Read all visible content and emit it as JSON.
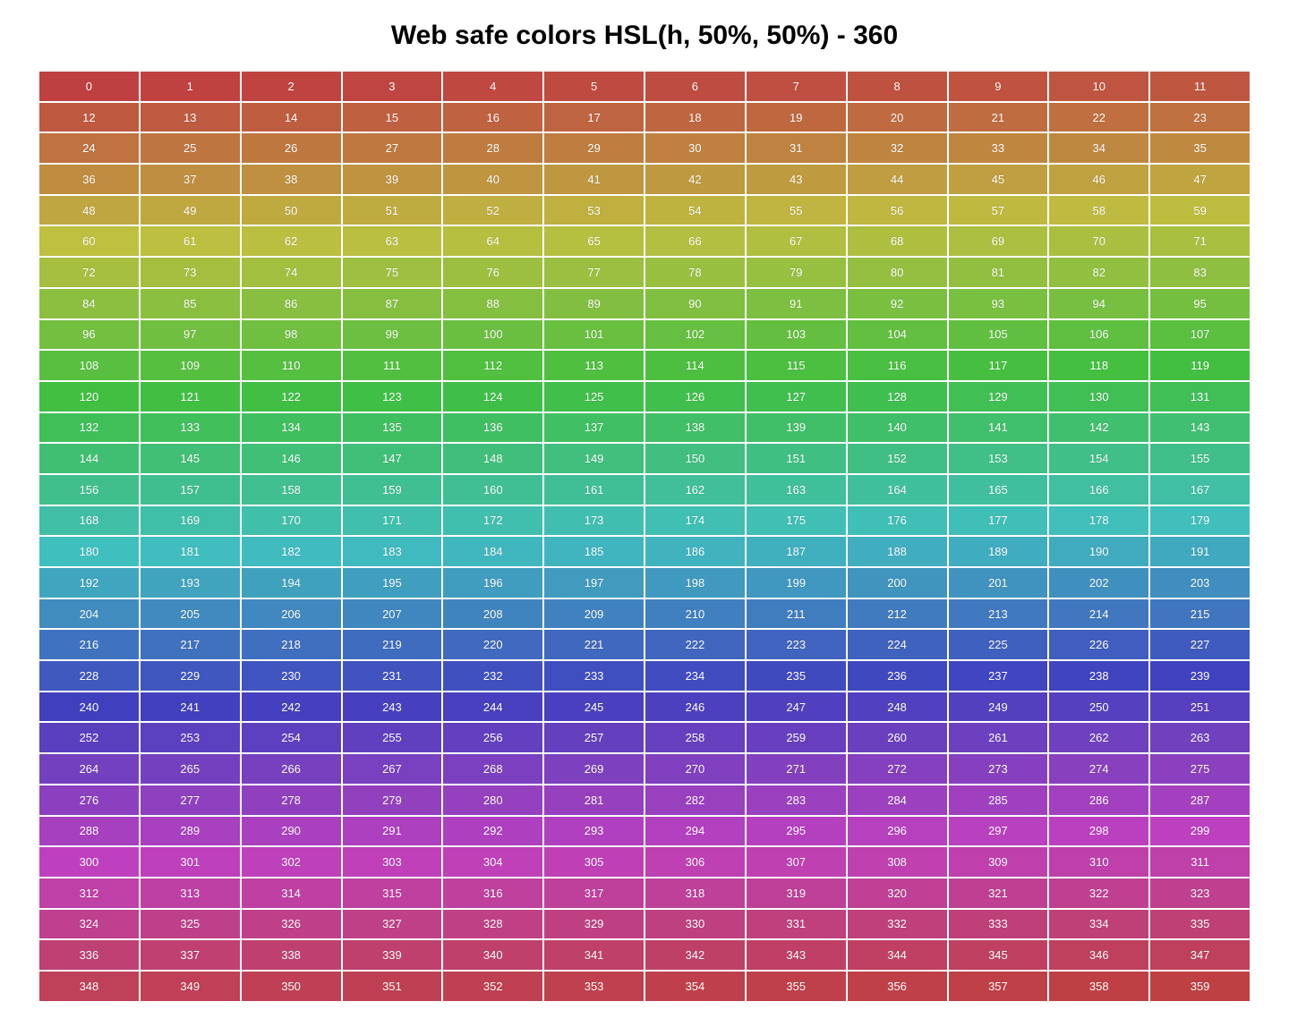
{
  "title": "Web safe colors HSL(h, 50%, 50%) - 360",
  "palette": {
    "saturation_percent": 50,
    "lightness_percent": 50,
    "text_color": "#ffffff",
    "hues": [
      0,
      1,
      2,
      3,
      4,
      5,
      6,
      7,
      8,
      9,
      10,
      11,
      12,
      13,
      14,
      15,
      16,
      17,
      18,
      19,
      20,
      21,
      22,
      23,
      24,
      25,
      26,
      27,
      28,
      29,
      30,
      31,
      32,
      33,
      34,
      35,
      36,
      37,
      38,
      39,
      40,
      41,
      42,
      43,
      44,
      45,
      46,
      47,
      48,
      49,
      50,
      51,
      52,
      53,
      54,
      55,
      56,
      57,
      58,
      59,
      60,
      61,
      62,
      63,
      64,
      65,
      66,
      67,
      68,
      69,
      70,
      71,
      72,
      73,
      74,
      75,
      76,
      77,
      78,
      79,
      80,
      81,
      82,
      83,
      84,
      85,
      86,
      87,
      88,
      89,
      90,
      91,
      92,
      93,
      94,
      95,
      96,
      97,
      98,
      99,
      100,
      101,
      102,
      103,
      104,
      105,
      106,
      107,
      108,
      109,
      110,
      111,
      112,
      113,
      114,
      115,
      116,
      117,
      118,
      119,
      120,
      121,
      122,
      123,
      124,
      125,
      126,
      127,
      128,
      129,
      130,
      131,
      132,
      133,
      134,
      135,
      136,
      137,
      138,
      139,
      140,
      141,
      142,
      143,
      144,
      145,
      146,
      147,
      148,
      149,
      150,
      151,
      152,
      153,
      154,
      155,
      156,
      157,
      158,
      159,
      160,
      161,
      162,
      163,
      164,
      165,
      166,
      167,
      168,
      169,
      170,
      171,
      172,
      173,
      174,
      175,
      176,
      177,
      178,
      179,
      180,
      181,
      182,
      183,
      184,
      185,
      186,
      187,
      188,
      189,
      190,
      191,
      192,
      193,
      194,
      195,
      196,
      197,
      198,
      199,
      200,
      201,
      202,
      203,
      204,
      205,
      206,
      207,
      208,
      209,
      210,
      211,
      212,
      213,
      214,
      215,
      216,
      217,
      218,
      219,
      220,
      221,
      222,
      223,
      224,
      225,
      226,
      227,
      228,
      229,
      230,
      231,
      232,
      233,
      234,
      235,
      236,
      237,
      238,
      239,
      240,
      241,
      242,
      243,
      244,
      245,
      246,
      247,
      248,
      249,
      250,
      251,
      252,
      253,
      254,
      255,
      256,
      257,
      258,
      259,
      260,
      261,
      262,
      263,
      264,
      265,
      266,
      267,
      268,
      269,
      270,
      271,
      272,
      273,
      274,
      275,
      276,
      277,
      278,
      279,
      280,
      281,
      282,
      283,
      284,
      285,
      286,
      287,
      288,
      289,
      290,
      291,
      292,
      293,
      294,
      295,
      296,
      297,
      298,
      299,
      300,
      301,
      302,
      303,
      304,
      305,
      306,
      307,
      308,
      309,
      310,
      311,
      312,
      313,
      314,
      315,
      316,
      317,
      318,
      319,
      320,
      321,
      322,
      323,
      324,
      325,
      326,
      327,
      328,
      329,
      330,
      331,
      332,
      333,
      334,
      335,
      336,
      337,
      338,
      339,
      340,
      341,
      342,
      343,
      344,
      345,
      346,
      347,
      348,
      349,
      350,
      351,
      352,
      353,
      354,
      355,
      356,
      357,
      358,
      359
    ]
  }
}
